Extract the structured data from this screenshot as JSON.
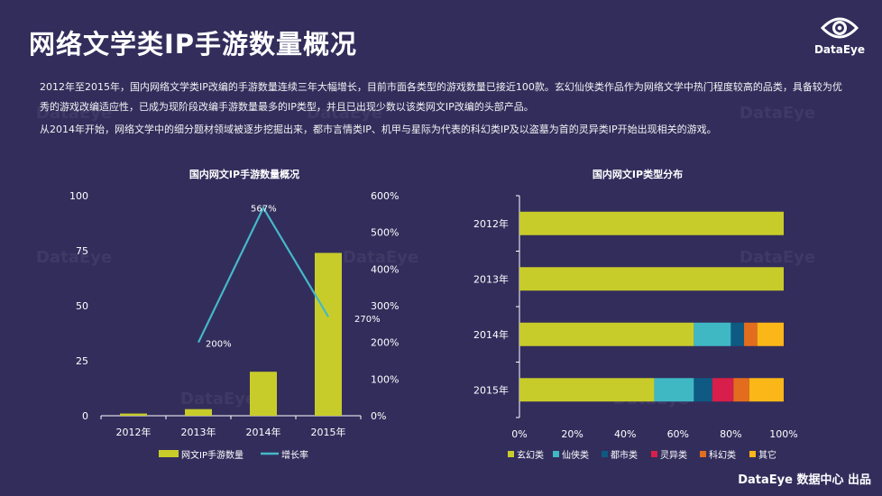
{
  "title": "网络文学类IP手游数量概况",
  "brand": {
    "logo_text": "DataEye"
  },
  "description": {
    "para1": "2012年至2015年，国内网络文学类IP改编的手游数量连续三年大幅增长，目前市面各类型的游戏数量已接近100款。玄幻仙侠类作品作为网络文学中热门程度较高的品类，具备较为优秀的游戏改编适应性，已成为现阶段改编手游数量最多的IP类型，并且已出现少数以该类网文IP改编的头部产品。",
    "para2": "从2014年开始，网络文学中的细分题材领域被逐步挖掘出来，都市言情类IP、机甲与星际为代表的科幻类IP及以盗墓为首的灵异类IP开始出现相关的游戏。"
  },
  "watermark": "DataEye",
  "footer": "DataEye 数据中心 出品",
  "colors": {
    "background": "#332d5c",
    "bar": "#c8cc2a",
    "line": "#45b8c8",
    "xuanhuan": "#c8cc2a",
    "xianxia": "#3fb8c4",
    "dushi": "#0e5a82",
    "lingyi": "#d81e4a",
    "kehuan": "#e36d1e",
    "qita": "#fbb717"
  },
  "chart_data": [
    {
      "type": "bar",
      "title": "国内网文IP手游数量概况",
      "categories": [
        "2012年",
        "2013年",
        "2014年",
        "2015年"
      ],
      "series": [
        {
          "name": "网文IP手游数量",
          "type": "bar",
          "axis": "left",
          "values": [
            1,
            3,
            20,
            74
          ]
        },
        {
          "name": "增长率",
          "type": "line",
          "axis": "right",
          "values": [
            null,
            200,
            567,
            270
          ],
          "labels": [
            "",
            "200%",
            "567%",
            "270%"
          ]
        }
      ],
      "y_left": {
        "min": 0,
        "max": 100,
        "ticks": [
          "0",
          "25",
          "50",
          "75",
          "100"
        ],
        "tick_values": [
          0,
          25,
          50,
          75,
          100
        ]
      },
      "y_right": {
        "min": 0,
        "max": 600,
        "ticks": [
          "0%",
          "100%",
          "200%",
          "300%",
          "400%",
          "500%",
          "600%"
        ],
        "tick_values": [
          0,
          100,
          200,
          300,
          400,
          500,
          600
        ]
      },
      "legend": "bottom"
    },
    {
      "type": "bar",
      "orientation": "horizontal",
      "stacked": "percent",
      "title": "国内网文IP类型分布",
      "categories": [
        "2012年",
        "2013年",
        "2014年",
        "2015年"
      ],
      "series": [
        {
          "name": "玄幻类",
          "values": [
            100,
            100,
            66,
            51
          ]
        },
        {
          "name": "仙侠类",
          "values": [
            0,
            0,
            14,
            15
          ]
        },
        {
          "name": "都市类",
          "values": [
            0,
            0,
            5,
            7
          ]
        },
        {
          "name": "灵异类",
          "values": [
            0,
            0,
            0,
            8
          ]
        },
        {
          "name": "科幻类",
          "values": [
            0,
            0,
            5,
            6
          ]
        },
        {
          "name": "其它",
          "values": [
            0,
            0,
            10,
            13
          ]
        }
      ],
      "x_ticks": [
        "0%",
        "20%",
        "40%",
        "60%",
        "80%",
        "100%"
      ],
      "x_tick_values": [
        0,
        20,
        40,
        60,
        80,
        100
      ],
      "legend": "bottom"
    }
  ]
}
